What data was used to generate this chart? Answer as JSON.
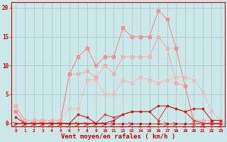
{
  "hours": [
    0,
    1,
    2,
    3,
    4,
    5,
    6,
    7,
    8,
    9,
    10,
    11,
    12,
    13,
    14,
    15,
    16,
    17,
    18,
    19,
    20,
    21,
    22,
    23
  ],
  "line_rafales": [
    2.0,
    0.0,
    0.0,
    0.0,
    0.0,
    0.0,
    8.5,
    11.5,
    13.0,
    10.0,
    11.5,
    11.5,
    16.5,
    15.0,
    15.0,
    15.0,
    19.5,
    18.0,
    13.0,
    6.5,
    0.0,
    0.0,
    0.0,
    0.0
  ],
  "line_moy_hi": [
    3.0,
    0.5,
    0.5,
    0.5,
    0.5,
    0.5,
    8.5,
    8.5,
    9.0,
    8.0,
    10.0,
    8.5,
    11.5,
    11.5,
    11.5,
    11.5,
    15.0,
    13.0,
    7.0,
    6.5,
    0.5,
    0.5,
    0.5,
    0.5
  ],
  "line_moy_lo": [
    3.0,
    0.5,
    0.5,
    0.5,
    0.5,
    0.5,
    2.5,
    2.5,
    7.5,
    7.5,
    5.0,
    5.0,
    7.5,
    7.0,
    8.0,
    7.5,
    7.0,
    7.5,
    8.0,
    8.0,
    7.5,
    5.5,
    2.0,
    0.5
  ],
  "line_dark1": [
    1.0,
    0.0,
    0.0,
    0.0,
    0.0,
    0.0,
    0.0,
    1.5,
    1.0,
    0.0,
    0.0,
    0.5,
    1.5,
    2.0,
    2.0,
    2.0,
    3.0,
    3.0,
    2.5,
    2.0,
    2.5,
    2.5,
    0.5,
    0.5
  ],
  "line_dark2": [
    0.0,
    0.0,
    0.0,
    0.0,
    0.0,
    0.0,
    0.0,
    0.0,
    0.0,
    0.0,
    1.5,
    1.0,
    1.5,
    2.0,
    2.0,
    2.0,
    0.5,
    3.0,
    2.5,
    2.0,
    0.5,
    0.0,
    0.0,
    0.0
  ],
  "line_zero": [
    0.0,
    0.0,
    0.0,
    0.0,
    0.0,
    0.0,
    0.0,
    0.0,
    0.0,
    0.0,
    0.0,
    0.0,
    0.0,
    0.0,
    0.0,
    0.0,
    0.0,
    0.0,
    0.0,
    0.0,
    0.0,
    0.0,
    0.0,
    0.0
  ],
  "color_rafales": "#f09090",
  "color_moy_hi": "#f0b0b0",
  "color_moy_lo": "#f0c0c0",
  "color_dark1": "#cc2020",
  "color_dark2": "#dd4040",
  "color_zero": "#cc2020",
  "bg_color": "#cce8e8",
  "grid_color": "#aacccc",
  "xlabel": "Vent moyen/en rafales ( km/h )",
  "yticks": [
    0,
    5,
    10,
    15,
    20
  ],
  "ylim": [
    -0.5,
    21
  ],
  "xlim": [
    -0.5,
    23.5
  ],
  "arrow_angles": [
    0,
    0,
    0,
    0,
    0,
    0,
    45,
    0,
    0,
    0,
    0,
    0,
    45,
    0,
    45,
    45,
    225,
    0,
    0,
    45,
    45,
    90,
    225,
    45
  ]
}
